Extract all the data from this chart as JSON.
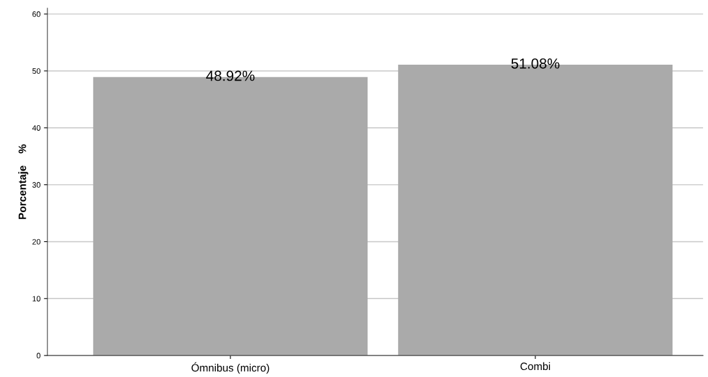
{
  "chart_data": {
    "type": "bar",
    "ylabel": "Porcentaje    %",
    "categories": [
      "Ómnibus (micro)",
      "Combi"
    ],
    "values": [
      48.92,
      51.08
    ],
    "color": "#aaaaaa",
    "value_labels": [
      "48.92%",
      "51.08%"
    ],
    "ylim": [
      0,
      61
    ],
    "yticks": [
      0,
      10,
      20,
      30,
      40,
      50,
      60
    ],
    "grid": "y"
  }
}
